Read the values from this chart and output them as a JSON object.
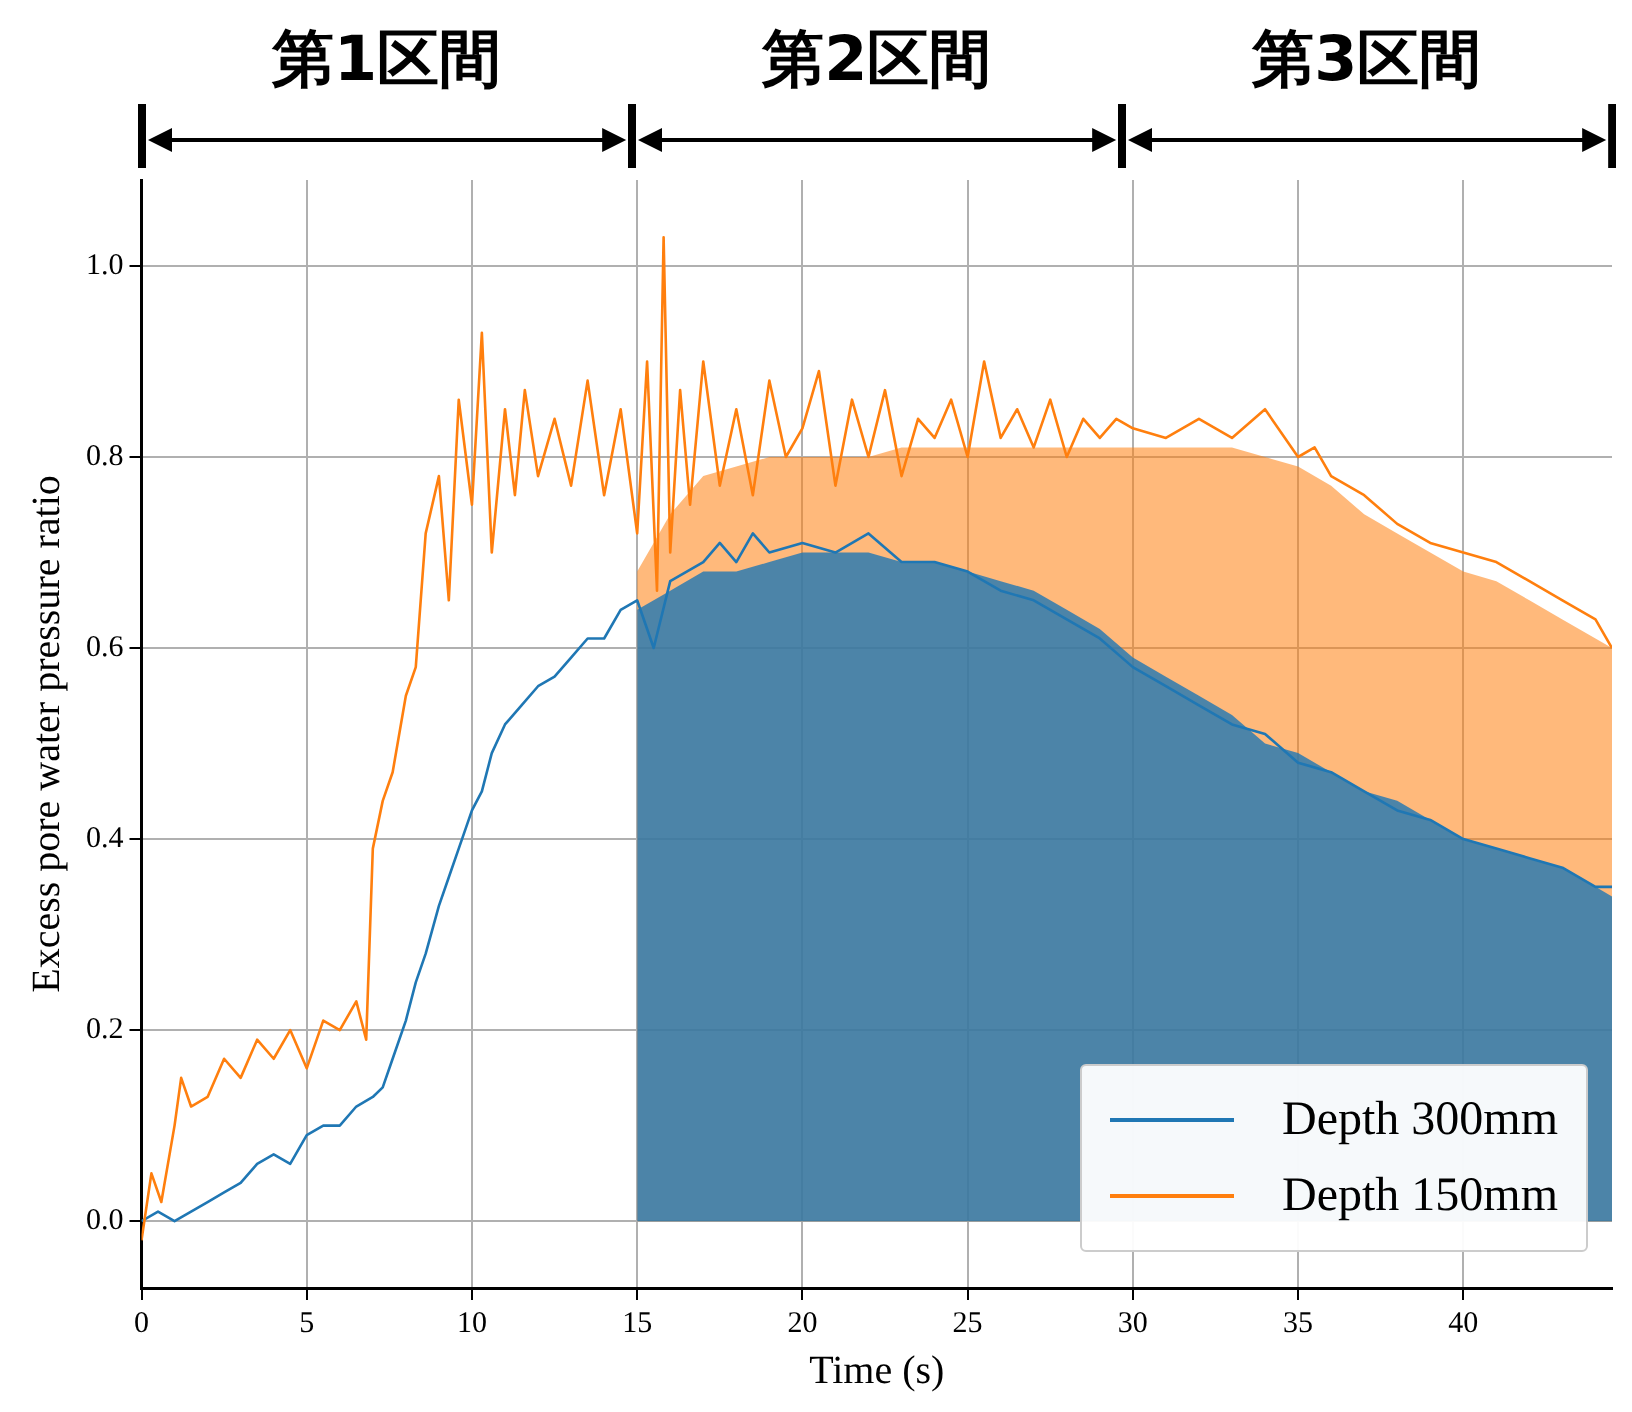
{
  "chart_data": {
    "type": "line",
    "xlabel": "Time (s)",
    "ylabel": "Excess pore water pressure ratio",
    "xlim": [
      0,
      44.5
    ],
    "xticks": [
      0,
      5,
      10,
      15,
      20,
      25,
      30,
      35,
      40
    ],
    "ylim": [
      -0.07,
      1.09
    ],
    "yticks": [
      {
        "value": 0,
        "label": "0.0"
      },
      {
        "value": 0.2,
        "label": "0.2"
      },
      {
        "value": 0.4,
        "label": "0.4"
      },
      {
        "value": 0.6,
        "label": "0.6"
      },
      {
        "value": 0.8,
        "label": "0.8"
      },
      {
        "value": 1,
        "label": "1.0"
      }
    ],
    "grid": true,
    "legend": "bottom right",
    "marker": "none",
    "line_style": "solid",
    "annotations": [
      "第1区間",
      "第2区間",
      "第3区間"
    ],
    "series": [
      {
        "type": "area",
        "color": "#ff7f0e",
        "x": [
          15,
          16,
          17,
          18,
          19,
          20,
          21,
          22,
          23,
          24,
          25,
          26,
          27,
          28,
          29,
          30,
          31,
          32,
          33,
          34,
          35,
          36,
          37,
          38,
          39,
          40,
          41,
          42,
          43,
          44,
          44.5
        ],
        "values": [
          0.68,
          0.74,
          0.78,
          0.79,
          0.8,
          0.8,
          0.8,
          0.8,
          0.81,
          0.81,
          0.81,
          0.81,
          0.81,
          0.81,
          0.81,
          0.81,
          0.81,
          0.81,
          0.81,
          0.8,
          0.79,
          0.77,
          0.74,
          0.72,
          0.7,
          0.68,
          0.67,
          0.65,
          0.63,
          0.61,
          0.6
        ]
      },
      {
        "type": "area",
        "color": "#1f77b4",
        "x": [
          15,
          16,
          17,
          18,
          19,
          20,
          21,
          22,
          23,
          24,
          25,
          26,
          27,
          28,
          29,
          30,
          31,
          32,
          33,
          34,
          35,
          36,
          37,
          38,
          39,
          40,
          41,
          42,
          43,
          44,
          44.5
        ],
        "values": [
          0.64,
          0.66,
          0.68,
          0.68,
          0.69,
          0.7,
          0.7,
          0.7,
          0.69,
          0.69,
          0.68,
          0.67,
          0.66,
          0.64,
          0.62,
          0.59,
          0.57,
          0.55,
          0.53,
          0.5,
          0.49,
          0.47,
          0.45,
          0.44,
          0.42,
          0.4,
          0.39,
          0.38,
          0.37,
          0.35,
          0.34
        ]
      },
      {
        "name": "Depth 300mm",
        "type": "line",
        "color": "#1f77b4",
        "x": [
          0,
          0.5,
          1,
          1.5,
          2,
          2.5,
          3,
          3.5,
          4,
          4.5,
          5,
          5.5,
          6,
          6.5,
          7,
          7.3,
          7.6,
          8,
          8.3,
          8.6,
          9,
          9.3,
          9.6,
          10,
          10.3,
          10.6,
          11,
          11.5,
          12,
          12.5,
          13,
          13.5,
          14,
          14.5,
          15,
          15.5,
          16,
          16.5,
          17,
          17.5,
          18,
          18.5,
          19,
          20,
          21,
          22,
          23,
          24,
          25,
          26,
          27,
          28,
          29,
          30,
          31,
          32,
          33,
          34,
          35,
          36,
          37,
          38,
          39,
          40,
          41,
          42,
          43,
          44,
          44.5
        ],
        "values": [
          0,
          0.01,
          0.0,
          0.01,
          0.02,
          0.03,
          0.04,
          0.06,
          0.07,
          0.06,
          0.09,
          0.1,
          0.1,
          0.12,
          0.13,
          0.14,
          0.17,
          0.21,
          0.25,
          0.28,
          0.33,
          0.36,
          0.39,
          0.43,
          0.45,
          0.49,
          0.52,
          0.54,
          0.56,
          0.57,
          0.59,
          0.61,
          0.61,
          0.64,
          0.65,
          0.6,
          0.67,
          0.68,
          0.69,
          0.71,
          0.69,
          0.72,
          0.7,
          0.71,
          0.7,
          0.72,
          0.69,
          0.69,
          0.68,
          0.66,
          0.65,
          0.63,
          0.61,
          0.58,
          0.56,
          0.54,
          0.52,
          0.51,
          0.48,
          0.47,
          0.45,
          0.43,
          0.42,
          0.4,
          0.39,
          0.38,
          0.37,
          0.35,
          0.35
        ]
      },
      {
        "name": "Depth 150mm",
        "type": "line",
        "color": "#ff7f0e",
        "x": [
          0,
          0.3,
          0.6,
          1,
          1.2,
          1.5,
          2,
          2.5,
          3,
          3.5,
          4,
          4.5,
          5,
          5.5,
          6,
          6.5,
          6.8,
          7,
          7.3,
          7.6,
          8,
          8.3,
          8.6,
          9,
          9.3,
          9.6,
          10,
          10.3,
          10.6,
          11,
          11.3,
          11.6,
          12,
          12.5,
          13,
          13.5,
          14,
          14.5,
          15,
          15.3,
          15.6,
          15.8,
          16,
          16.3,
          16.6,
          17,
          17.5,
          18,
          18.5,
          19,
          19.5,
          20,
          20.5,
          21,
          21.5,
          22,
          22.5,
          23,
          23.5,
          24,
          24.5,
          25,
          25.5,
          26,
          26.5,
          27,
          27.5,
          28,
          28.5,
          29,
          29.5,
          30,
          31,
          32,
          33,
          34,
          35,
          35.5,
          36,
          37,
          38,
          39,
          40,
          41,
          42,
          43,
          44,
          44.5
        ],
        "values": [
          -0.02,
          0.05,
          0.02,
          0.1,
          0.15,
          0.12,
          0.13,
          0.17,
          0.15,
          0.19,
          0.17,
          0.2,
          0.16,
          0.21,
          0.2,
          0.23,
          0.19,
          0.39,
          0.44,
          0.47,
          0.55,
          0.58,
          0.72,
          0.78,
          0.65,
          0.86,
          0.75,
          0.93,
          0.7,
          0.85,
          0.76,
          0.87,
          0.78,
          0.84,
          0.77,
          0.88,
          0.76,
          0.85,
          0.72,
          0.9,
          0.66,
          1.03,
          0.7,
          0.87,
          0.75,
          0.9,
          0.77,
          0.85,
          0.76,
          0.88,
          0.8,
          0.83,
          0.89,
          0.77,
          0.86,
          0.8,
          0.87,
          0.78,
          0.84,
          0.82,
          0.86,
          0.8,
          0.9,
          0.82,
          0.85,
          0.81,
          0.86,
          0.8,
          0.84,
          0.82,
          0.84,
          0.83,
          0.82,
          0.84,
          0.82,
          0.85,
          0.8,
          0.81,
          0.78,
          0.76,
          0.73,
          0.71,
          0.7,
          0.69,
          0.67,
          0.65,
          0.63,
          0.6
        ]
      }
    ]
  }
}
